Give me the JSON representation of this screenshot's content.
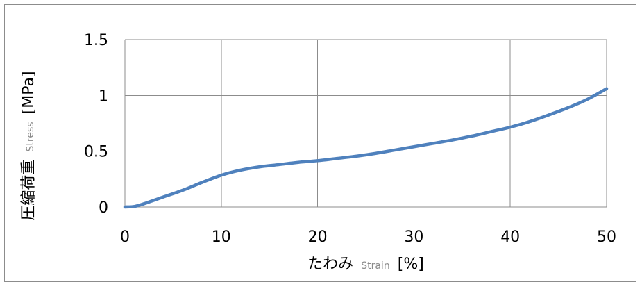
{
  "chart_data": {
    "type": "line",
    "xlabel_main": "たわみ",
    "xlabel_sub": "Strain",
    "xlabel_unit": "[%]",
    "ylabel_main": "圧縮荷重",
    "ylabel_sub": "Stress",
    "ylabel_unit": "[MPa]",
    "xlim": [
      0,
      50
    ],
    "ylim": [
      0,
      1.5
    ],
    "x_ticks": [
      "0",
      "10",
      "20",
      "30",
      "40",
      "50"
    ],
    "y_ticks": [
      "0",
      "0.5",
      "1",
      "1.5"
    ],
    "x_tick_values": [
      0,
      10,
      20,
      30,
      40,
      50
    ],
    "y_tick_values": [
      0,
      0.5,
      1,
      1.5
    ],
    "grid": true,
    "legend": "none",
    "series": [
      {
        "color": "#4f81bd",
        "x": [
          0,
          1,
          2,
          4,
          6,
          8,
          10,
          12,
          14,
          16,
          18,
          20,
          22,
          24,
          26,
          28,
          30,
          32,
          34,
          36,
          38,
          40,
          42,
          44,
          46,
          48,
          50
        ],
        "y": [
          0,
          0.005,
          0.03,
          0.09,
          0.15,
          0.22,
          0.285,
          0.33,
          0.36,
          0.38,
          0.4,
          0.415,
          0.435,
          0.455,
          0.48,
          0.51,
          0.54,
          0.57,
          0.6,
          0.635,
          0.675,
          0.715,
          0.765,
          0.825,
          0.89,
          0.965,
          1.06
        ]
      }
    ]
  }
}
